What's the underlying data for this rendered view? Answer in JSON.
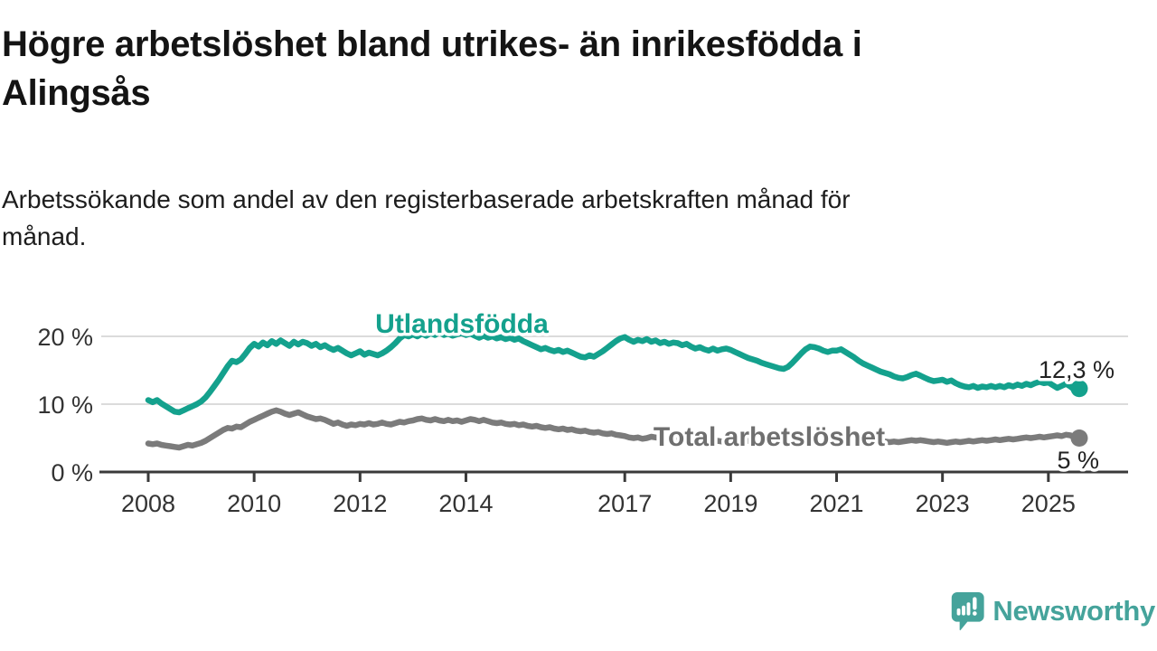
{
  "title": {
    "lines": [
      "Högre arbetslöshet bland utrikes- än inrikesfödda i",
      "Alingsås"
    ]
  },
  "subtitle": {
    "lines": [
      "Arbetssökande som andel av den registerbaserade arbetskraften månad för",
      "månad."
    ]
  },
  "colors": {
    "accent_teal": "#14A18D",
    "series_gray": "#7B7B7B",
    "label_gray": "#6F6F6F",
    "text_dark": "#222222",
    "axis_text": "#333333",
    "axis_line": "#3A3A3A",
    "gridline": "#DBDBDB",
    "logo_teal": "#45A39B"
  },
  "chart_data": {
    "type": "line",
    "x_start": "2008-01",
    "x_end": "2025-08",
    "x_interval": "monthly",
    "xticks": [
      2008,
      2010,
      2012,
      2014,
      2017,
      2019,
      2021,
      2023,
      2025
    ],
    "yticks": [
      {
        "value": 0,
        "label": "0 %"
      },
      {
        "value": 10,
        "label": "10 %"
      },
      {
        "value": 20,
        "label": "20 %"
      }
    ],
    "ylim": [
      0,
      22
    ],
    "grid": "horizontal",
    "series": [
      {
        "name": "Utlandsfödda",
        "color": "#14A18D",
        "end_label": "12,3 %",
        "values": [
          10.6,
          10.3,
          10.6,
          10.1,
          9.7,
          9.3,
          8.9,
          8.8,
          9.1,
          9.4,
          9.7,
          10.0,
          10.4,
          11.0,
          11.8,
          12.7,
          13.6,
          14.6,
          15.6,
          16.4,
          16.2,
          16.6,
          17.4,
          18.3,
          18.9,
          18.5,
          19.1,
          18.7,
          19.3,
          18.9,
          19.4,
          19.0,
          18.6,
          19.2,
          18.8,
          19.2,
          19.0,
          18.6,
          18.9,
          18.4,
          18.7,
          18.3,
          18.0,
          18.3,
          17.9,
          17.5,
          17.2,
          17.5,
          17.8,
          17.3,
          17.6,
          17.4,
          17.2,
          17.5,
          17.9,
          18.4,
          19.0,
          19.7,
          20.2,
          20.0,
          20.3,
          20.0,
          20.4,
          20.1,
          20.5,
          20.2,
          20.6,
          20.2,
          20.4,
          20.1,
          20.3,
          20.5,
          20.2,
          20.4,
          20.1,
          19.8,
          20.1,
          19.8,
          20.0,
          19.7,
          19.9,
          19.6,
          19.8,
          19.5,
          19.7,
          19.3,
          19.0,
          18.7,
          18.4,
          18.1,
          18.3,
          18.0,
          17.8,
          18.0,
          17.7,
          17.9,
          17.6,
          17.3,
          17.0,
          16.9,
          17.2,
          17.0,
          17.4,
          17.8,
          18.3,
          18.8,
          19.3,
          19.7,
          19.9,
          19.5,
          19.2,
          19.5,
          19.3,
          19.6,
          19.2,
          19.4,
          19.0,
          19.2,
          18.9,
          19.1,
          19.0,
          18.7,
          18.9,
          18.5,
          18.2,
          18.4,
          18.1,
          17.9,
          18.2,
          17.9,
          18.1,
          18.2,
          18.0,
          17.7,
          17.4,
          17.1,
          16.8,
          16.6,
          16.4,
          16.1,
          15.9,
          15.7,
          15.5,
          15.3,
          15.2,
          15.5,
          16.1,
          16.8,
          17.5,
          18.1,
          18.5,
          18.4,
          18.2,
          17.9,
          17.7,
          17.9,
          17.9,
          18.1,
          17.7,
          17.3,
          16.9,
          16.4,
          16.0,
          15.7,
          15.4,
          15.1,
          14.8,
          14.6,
          14.4,
          14.1,
          13.9,
          13.8,
          14.0,
          14.3,
          14.5,
          14.2,
          13.9,
          13.6,
          13.4,
          13.5,
          13.6,
          13.3,
          13.5,
          13.1,
          12.8,
          12.6,
          12.5,
          12.7,
          12.4,
          12.6,
          12.5,
          12.7,
          12.5,
          12.7,
          12.5,
          12.8,
          12.6,
          12.9,
          12.7,
          13.0,
          12.8,
          13.1,
          13.3,
          13.1,
          13.2,
          12.8,
          12.4,
          12.7,
          13.0,
          12.6,
          12.1,
          12.3
        ]
      },
      {
        "name": "Total arbetslöshet",
        "color": "#7B7B7B",
        "end_label": "5 %",
        "values": [
          4.2,
          4.1,
          4.2,
          4.0,
          3.9,
          3.8,
          3.7,
          3.6,
          3.8,
          4.0,
          3.9,
          4.1,
          4.3,
          4.6,
          5.0,
          5.4,
          5.8,
          6.2,
          6.5,
          6.4,
          6.7,
          6.6,
          7.0,
          7.4,
          7.7,
          8.0,
          8.3,
          8.6,
          8.9,
          9.1,
          8.9,
          8.6,
          8.4,
          8.6,
          8.8,
          8.5,
          8.2,
          8.0,
          7.8,
          7.9,
          7.7,
          7.4,
          7.1,
          7.3,
          7.0,
          6.8,
          7.0,
          6.9,
          7.1,
          7.0,
          7.2,
          7.0,
          7.1,
          7.3,
          7.1,
          7.0,
          7.2,
          7.4,
          7.3,
          7.5,
          7.6,
          7.8,
          7.9,
          7.7,
          7.6,
          7.8,
          7.6,
          7.5,
          7.7,
          7.5,
          7.6,
          7.4,
          7.6,
          7.8,
          7.7,
          7.5,
          7.7,
          7.5,
          7.3,
          7.2,
          7.3,
          7.1,
          7.0,
          7.1,
          6.9,
          7.0,
          6.8,
          6.7,
          6.8,
          6.6,
          6.5,
          6.6,
          6.4,
          6.3,
          6.4,
          6.2,
          6.3,
          6.1,
          6.0,
          6.1,
          5.9,
          5.8,
          5.9,
          5.7,
          5.6,
          5.7,
          5.5,
          5.4,
          5.3,
          5.1,
          5.0,
          5.1,
          4.9,
          5.0,
          5.2,
          5.1,
          5.0,
          5.1,
          4.9,
          5.0,
          4.9,
          4.8,
          4.9,
          4.7,
          4.8,
          4.6,
          4.7,
          4.6,
          4.5,
          4.6,
          4.5,
          4.6,
          4.7,
          4.6,
          4.7,
          4.5,
          4.6,
          4.7,
          4.6,
          4.7,
          4.8,
          4.7,
          4.8,
          4.9,
          5.0,
          5.1,
          5.3,
          5.5,
          5.6,
          5.7,
          5.6,
          5.7,
          5.6,
          5.5,
          5.4,
          5.3,
          5.2,
          5.1,
          5.0,
          4.9,
          4.8,
          4.7,
          4.6,
          4.5,
          4.6,
          4.5,
          4.4,
          4.5,
          4.4,
          4.5,
          4.4,
          4.5,
          4.6,
          4.7,
          4.6,
          4.7,
          4.6,
          4.5,
          4.4,
          4.5,
          4.4,
          4.3,
          4.4,
          4.5,
          4.4,
          4.5,
          4.6,
          4.5,
          4.6,
          4.7,
          4.6,
          4.7,
          4.8,
          4.7,
          4.8,
          4.9,
          4.8,
          4.9,
          5.0,
          5.1,
          5.0,
          5.1,
          5.2,
          5.1,
          5.2,
          5.3,
          5.4,
          5.3,
          5.5,
          5.4,
          5.1,
          5.0
        ]
      }
    ]
  },
  "logo": {
    "text": "Newsworthy"
  }
}
